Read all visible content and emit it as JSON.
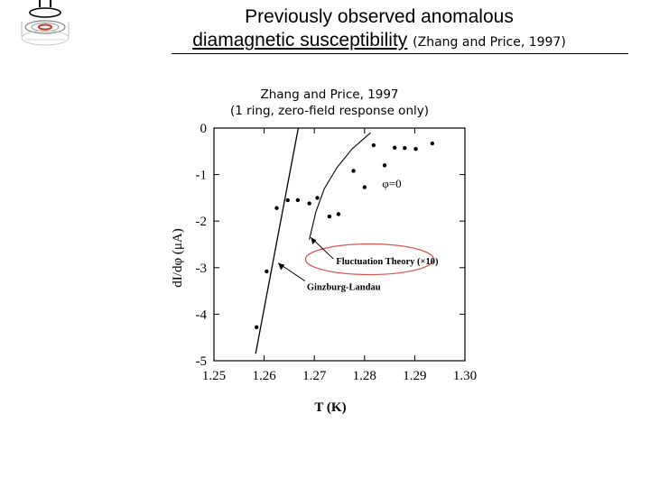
{
  "slide": {
    "title_line1": "Previously observed anomalous",
    "title_line2_main": "diamagnetic susceptibility",
    "title_line2_cite": "(Zhang and Price, 1997)",
    "caption_line1": "Zhang and Price, 1997",
    "caption_line2": "(1 ring, zero-field response only)"
  },
  "logo": {
    "icon": "ring-diagram-logo"
  },
  "chart_data": {
    "type": "scatter",
    "xlabel": "T (K)",
    "ylabel": "dI/dφ (μA)",
    "xlim": [
      1.25,
      1.3
    ],
    "ylim": [
      -5,
      0
    ],
    "x_ticks": [
      "1.25",
      "1.26",
      "1.27",
      "1.28",
      "1.29",
      "1.30"
    ],
    "y_ticks": [
      "0",
      "-1",
      "-2",
      "-3",
      "-4",
      "-5"
    ],
    "grid": false,
    "series": [
      {
        "name": "",
        "style": "points",
        "points": [
          {
            "x": 1.2585,
            "y": -4.28
          },
          {
            "x": 1.2605,
            "y": -3.08
          },
          {
            "x": 1.2625,
            "y": -1.72
          },
          {
            "x": 1.2647,
            "y": -1.55
          },
          {
            "x": 1.2667,
            "y": -1.55
          },
          {
            "x": 1.269,
            "y": -1.62
          },
          {
            "x": 1.2706,
            "y": -1.5
          },
          {
            "x": 1.273,
            "y": -1.9
          },
          {
            "x": 1.2748,
            "y": -1.85
          },
          {
            "x": 1.2778,
            "y": -0.92
          },
          {
            "x": 1.28,
            "y": -1.27
          },
          {
            "x": 1.2818,
            "y": -0.37
          },
          {
            "x": 1.284,
            "y": -0.8
          },
          {
            "x": 1.286,
            "y": -0.42
          },
          {
            "x": 1.288,
            "y": -0.43
          },
          {
            "x": 1.2902,
            "y": -0.45
          },
          {
            "x": 1.2935,
            "y": -0.33
          }
        ]
      },
      {
        "name": "Ginzburg-Landau",
        "style": "line",
        "points": [
          {
            "x": 1.2583,
            "y": -4.85
          },
          {
            "x": 1.2668,
            "y": 0
          }
        ]
      },
      {
        "name": "Fluctuation Theory (×10)",
        "style": "curve",
        "points": [
          {
            "x": 1.269,
            "y": -2.4
          },
          {
            "x": 1.2703,
            "y": -1.8
          },
          {
            "x": 1.272,
            "y": -1.3
          },
          {
            "x": 1.2745,
            "y": -0.85
          },
          {
            "x": 1.2775,
            "y": -0.45
          },
          {
            "x": 1.2812,
            "y": -0.1
          }
        ]
      }
    ],
    "annotations": [
      {
        "text": "φ=0"
      },
      {
        "text": "Fluctuation Theory  (×10)",
        "highlighted": true,
        "highlight_color": "#d9534f"
      },
      {
        "text": "Ginzburg-Landau"
      }
    ]
  }
}
